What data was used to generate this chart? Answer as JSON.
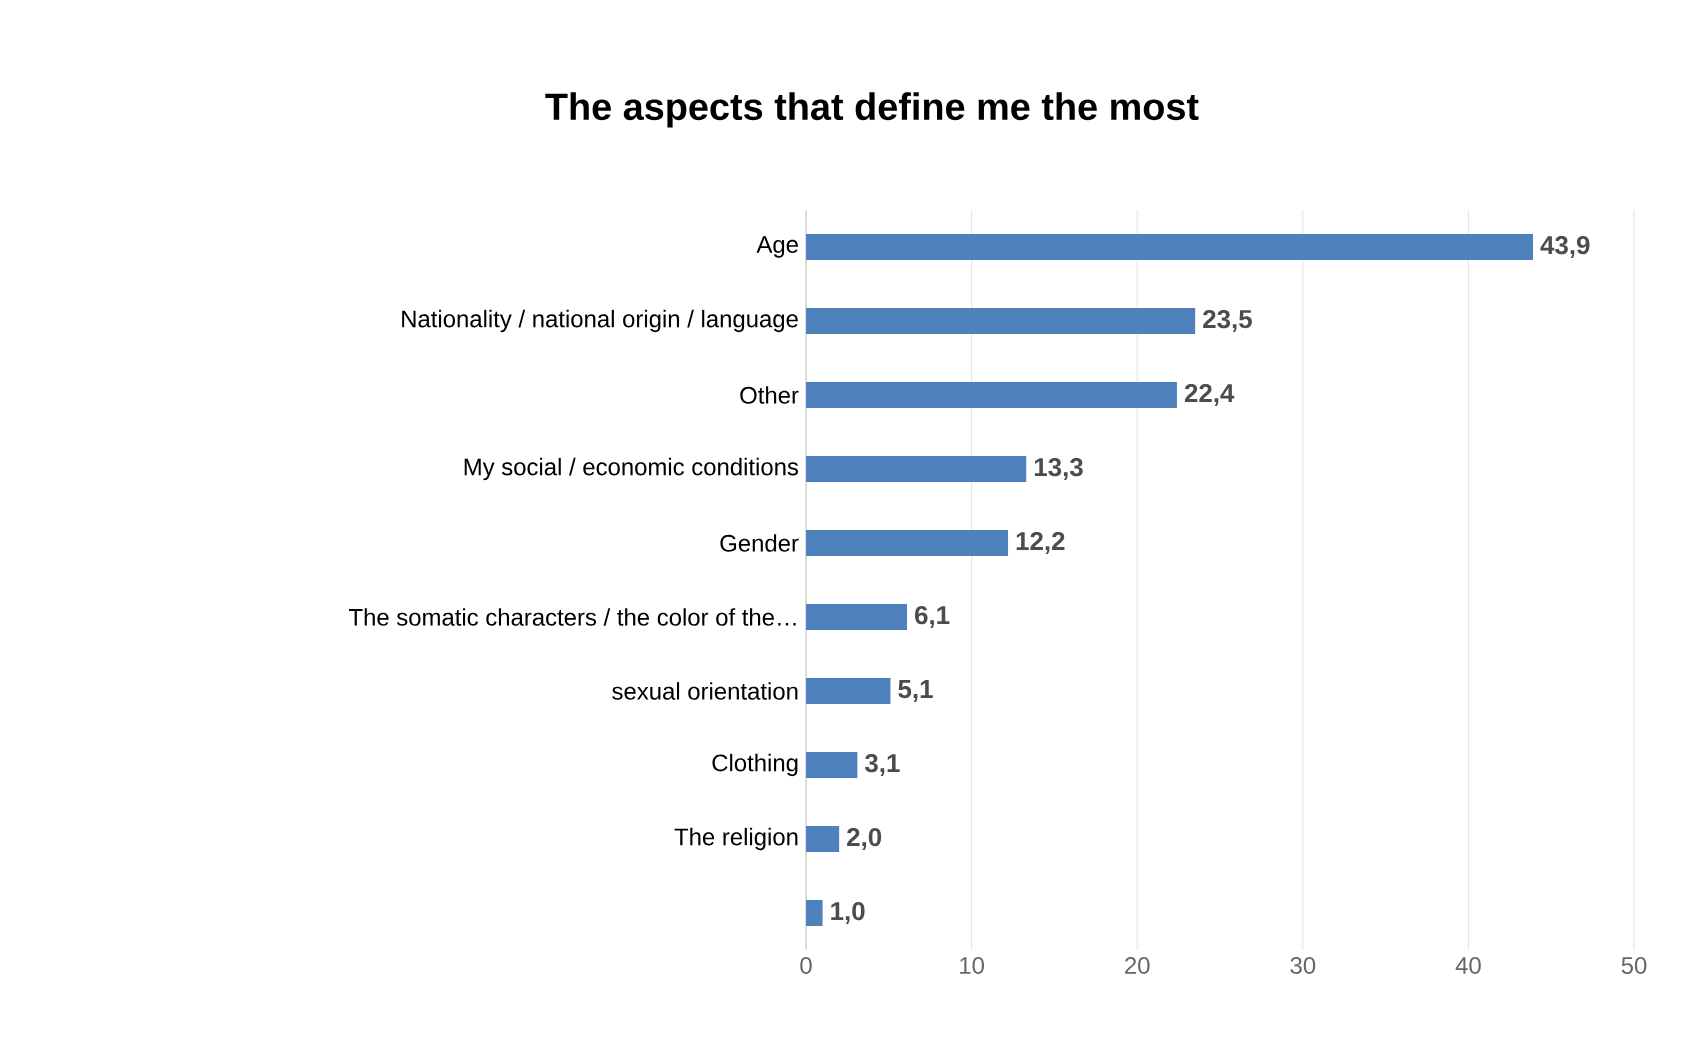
{
  "chart_data": {
    "type": "bar",
    "orientation": "horizontal",
    "title": "The aspects that define me the most",
    "categories": [
      "Age",
      "Nationality / national origin / language",
      "Other",
      "My social / economic conditions",
      "Gender",
      "The somatic characters / the color of the…",
      "sexual orientation",
      "Clothing",
      "The religion",
      null
    ],
    "values": [
      43.9,
      23.5,
      22.4,
      13.3,
      12.2,
      6.1,
      5.1,
      3.1,
      2.0,
      1.0
    ],
    "value_labels": [
      "43,9",
      "23,5",
      "22,4",
      "13,3",
      "12,2",
      "6,1",
      "5,1",
      "3,1",
      "2,0",
      "1,0"
    ],
    "color": "#4f81bd",
    "xlim": [
      0,
      50
    ],
    "xticks": [
      0,
      10,
      20,
      30,
      40,
      50
    ],
    "grid": "x"
  }
}
